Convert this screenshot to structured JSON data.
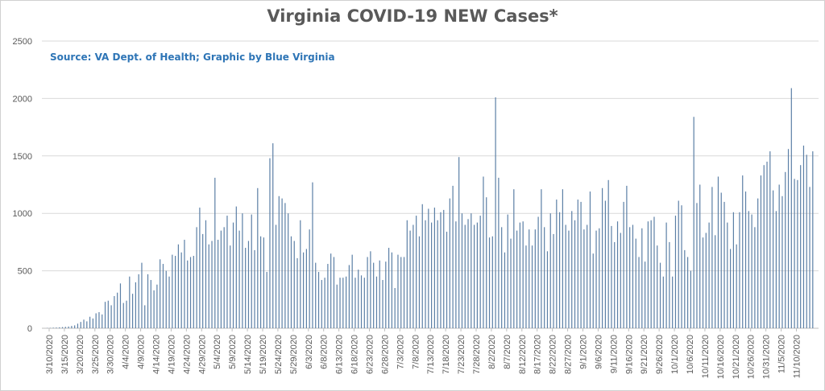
{
  "chart_data": {
    "type": "bar",
    "title": "Virginia COVID-19 NEW Cases*",
    "subtitle": "Source: VA Dept. of Health; Graphic by Blue Virginia",
    "xlabel": "",
    "ylabel": "",
    "ylim": [
      0,
      2500
    ],
    "yticks": [
      0,
      500,
      1000,
      1500,
      2000,
      2500
    ],
    "grid": true,
    "legend": "none",
    "bar_color": "#5b7fa6",
    "start_date": "2020-03-10",
    "x_tick_labels": [
      "3/10/2020",
      "3/15/2020",
      "3/20/2020",
      "3/25/2020",
      "3/30/2020",
      "4/4/2020",
      "4/9/2020",
      "4/14/2020",
      "4/19/2020",
      "4/24/2020",
      "4/29/2020",
      "5/4/2020",
      "5/9/2020",
      "5/14/2020",
      "5/19/2020",
      "5/24/2020",
      "5/29/2020",
      "6/3/2020",
      "6/8/2020",
      "6/13/2020",
      "6/18/2020",
      "6/23/2020",
      "6/28/2020",
      "7/3/2020",
      "7/8/2020",
      "7/13/2020",
      "7/18/2020",
      "7/23/2020",
      "7/28/2020",
      "8/2/2020",
      "8/7/2020",
      "8/12/2020",
      "8/17/2020",
      "8/22/2020",
      "8/27/2020",
      "9/1/2020",
      "9/6/2020",
      "9/11/2020",
      "9/16/2020",
      "9/21/2020",
      "9/26/2020",
      "10/1/2020",
      "10/6/2020",
      "10/11/2020",
      "10/16/2020",
      "10/21/2020",
      "10/26/2020",
      "10/31/2020",
      "11/5/2020",
      "11/10/2020"
    ],
    "values": [
      2,
      3,
      5,
      6,
      8,
      10,
      12,
      15,
      20,
      25,
      40,
      55,
      75,
      60,
      100,
      85,
      130,
      140,
      120,
      230,
      240,
      200,
      280,
      310,
      390,
      220,
      240,
      450,
      300,
      400,
      470,
      570,
      200,
      470,
      420,
      330,
      380,
      600,
      560,
      500,
      450,
      640,
      630,
      730,
      660,
      770,
      590,
      620,
      630,
      880,
      1050,
      820,
      940,
      730,
      760,
      1310,
      770,
      850,
      880,
      980,
      720,
      920,
      1060,
      850,
      1000,
      700,
      760,
      990,
      680,
      1220,
      800,
      790,
      490,
      1480,
      1610,
      900,
      1150,
      1130,
      1090,
      1000,
      800,
      760,
      610,
      940,
      660,
      690,
      860,
      1270,
      570,
      490,
      420,
      440,
      560,
      650,
      620,
      380,
      440,
      440,
      450,
      550,
      640,
      440,
      510,
      460,
      440,
      620,
      670,
      570,
      450,
      590,
      420,
      580,
      700,
      660,
      350,
      640,
      620,
      620,
      940,
      850,
      900,
      980,
      800,
      1080,
      940,
      1040,
      920,
      1050,
      940,
      1010,
      1030,
      840,
      1130,
      1240,
      930,
      1490,
      1000,
      900,
      950,
      1000,
      900,
      920,
      980,
      1320,
      1140,
      790,
      800,
      2010,
      1310,
      880,
      660,
      990,
      780,
      1210,
      850,
      920,
      930,
      720,
      860,
      720,
      860,
      970,
      1210,
      880,
      670,
      1000,
      820,
      1120,
      1010,
      1210,
      900,
      850,
      1020,
      940,
      1120,
      1100,
      860,
      900,
      1190,
      650,
      850,
      870,
      1220,
      1110,
      1290,
      890,
      750,
      930,
      830,
      1100,
      1240,
      880,
      900,
      780,
      620,
      870,
      580,
      930,
      940,
      970,
      720,
      570,
      450,
      920,
      750,
      450,
      980,
      1110,
      1070,
      680,
      620,
      500,
      1840,
      1090,
      1250,
      790,
      830,
      920,
      1230,
      810,
      1320,
      1180,
      1100,
      920,
      690,
      1010,
      730,
      1010,
      1330,
      1190,
      1020,
      990,
      880,
      1130,
      1330,
      1420,
      1450,
      1540,
      1200,
      1020,
      1250,
      1150,
      1360,
      1560,
      2090,
      1300,
      1290,
      1420,
      1590,
      1510,
      1230,
      1540
    ]
  }
}
